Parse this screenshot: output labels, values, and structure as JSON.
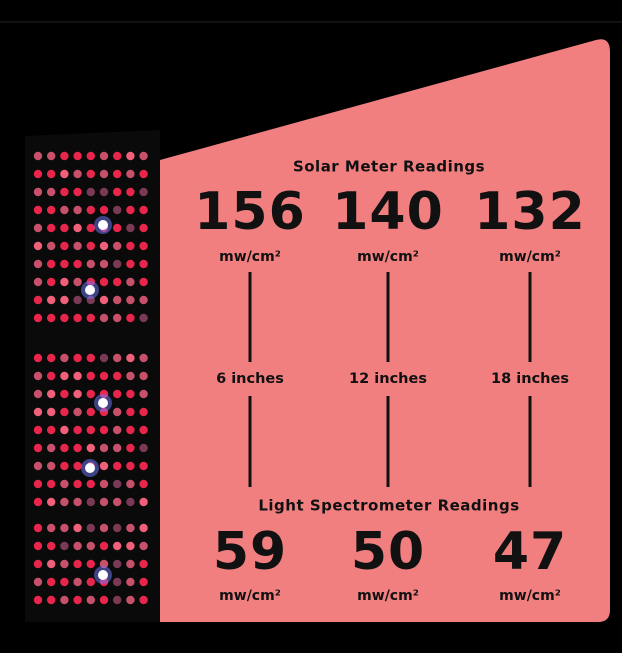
{
  "solar": {
    "title": "Solar Meter Readings",
    "readings": [
      {
        "value": 156,
        "unit": "mw/cm²"
      },
      {
        "value": 140,
        "unit": "mw/cm²"
      },
      {
        "value": 132,
        "unit": "mw/cm²"
      }
    ]
  },
  "distances": [
    "6 inches",
    "12 inches",
    "18 inches"
  ],
  "spectrometer": {
    "title": "Light Spectrometer Readings",
    "readings": [
      {
        "value": 59,
        "unit": "mw/cm²"
      },
      {
        "value": 50,
        "unit": "mw/cm²"
      },
      {
        "value": 47,
        "unit": "mw/cm²"
      }
    ]
  }
}
